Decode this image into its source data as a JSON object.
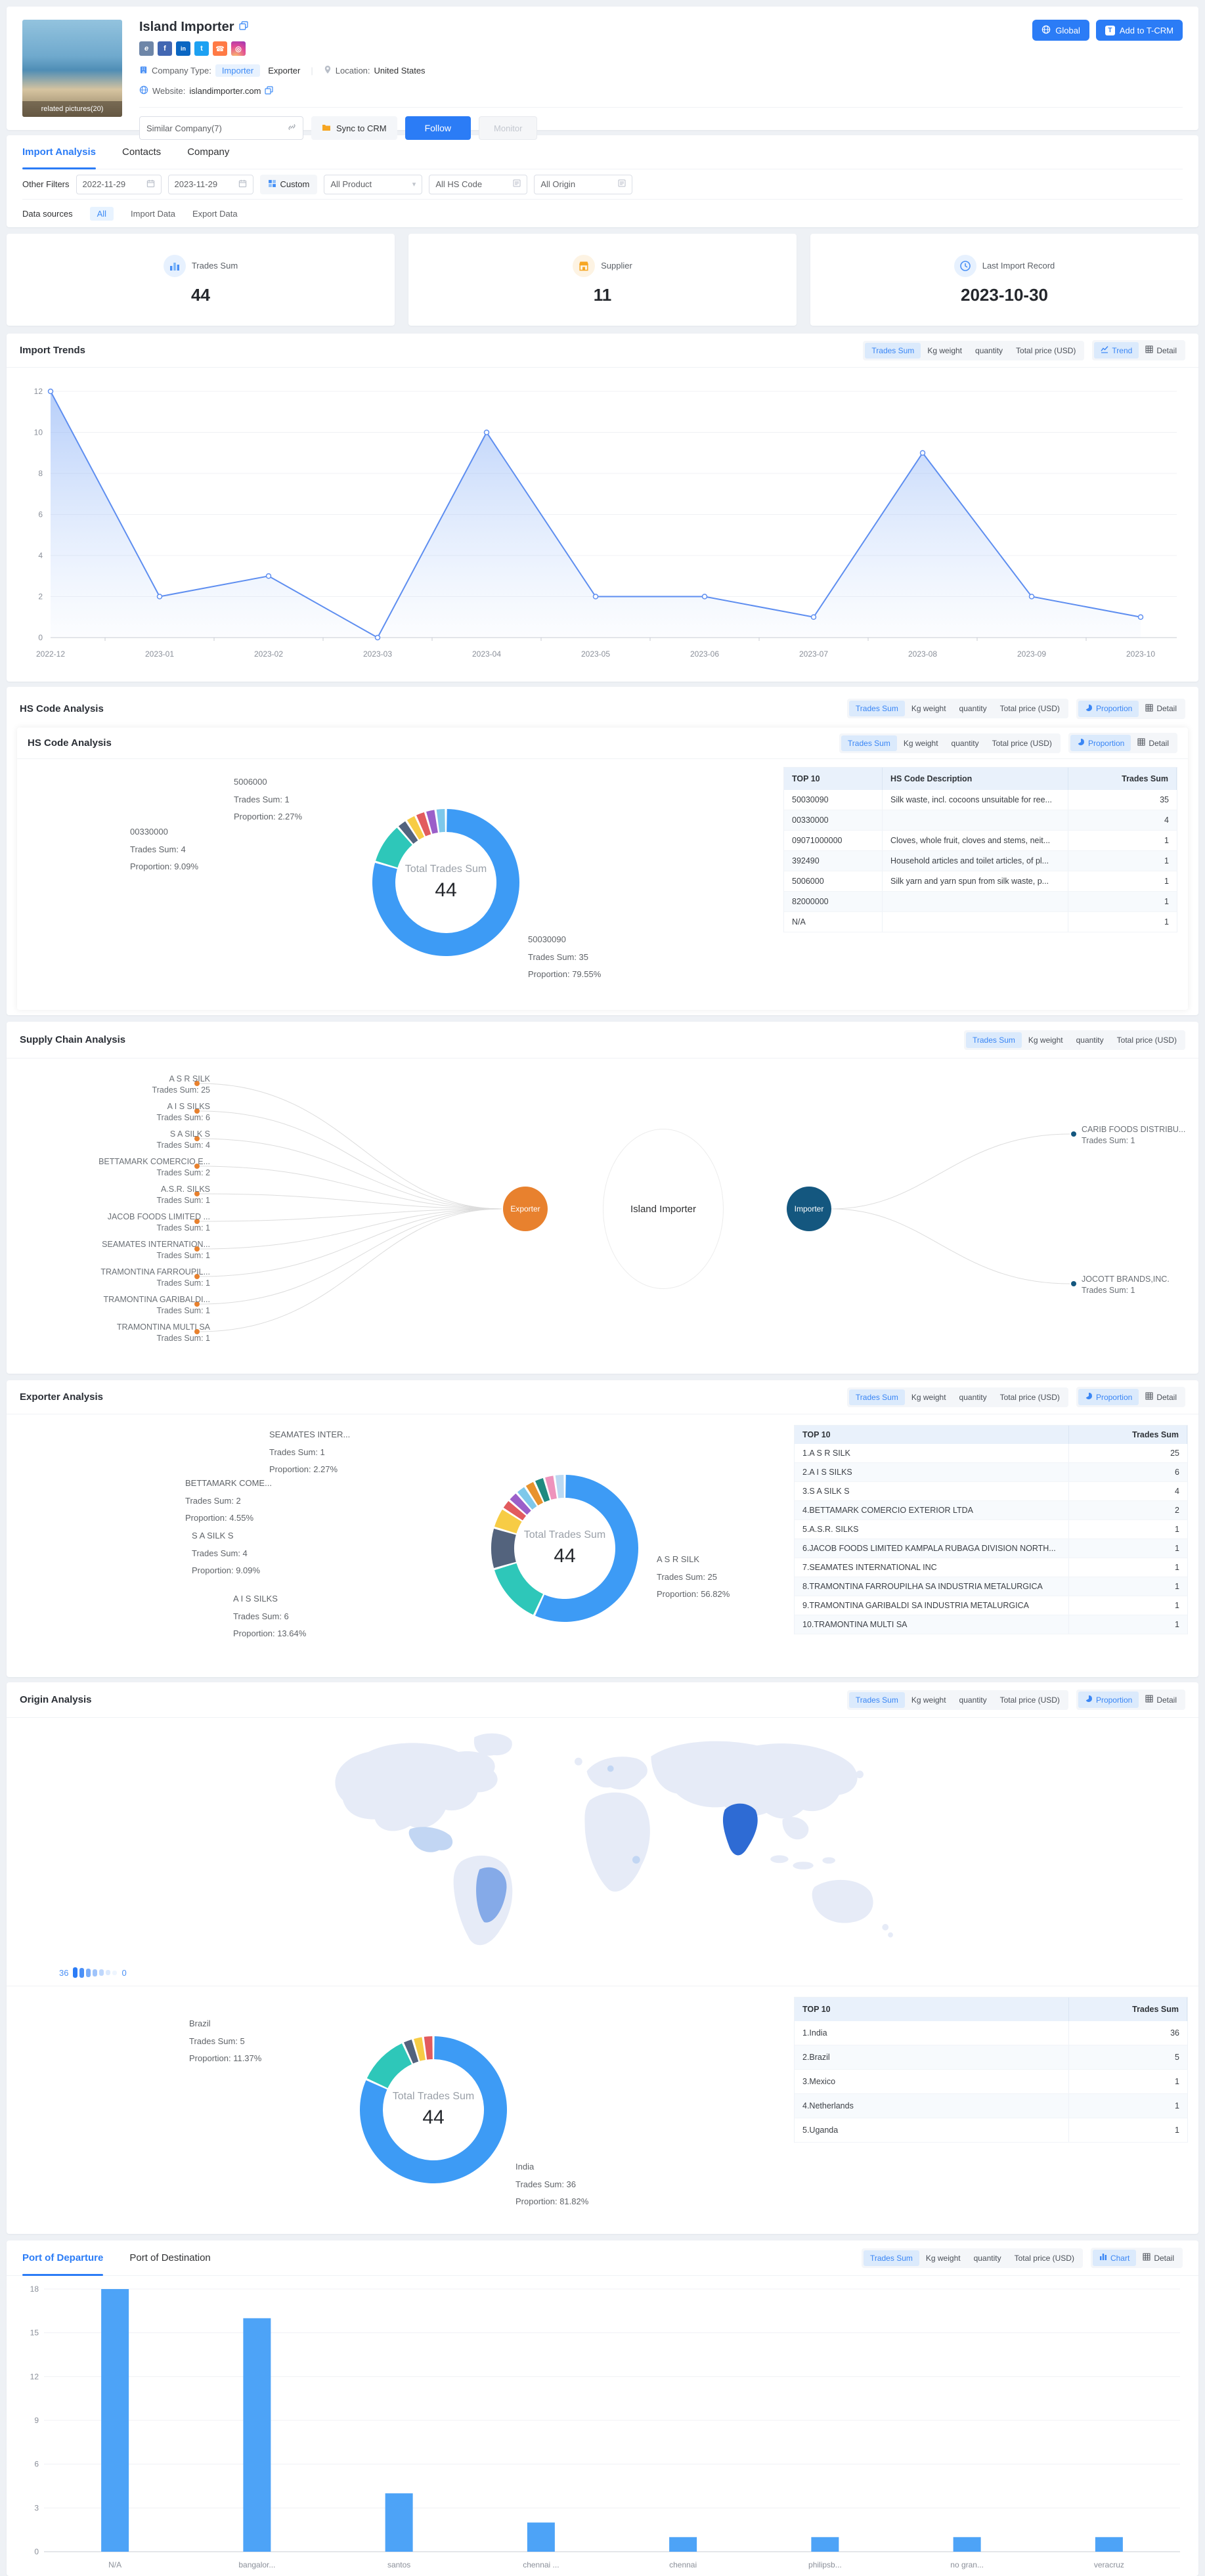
{
  "colors": {
    "primary": "#2b7cf6",
    "chart_blue": "#3D9BF5",
    "teal": "#2EC7B9",
    "slate": "#53637D",
    "yellow": "#F7CC45",
    "red": "#E25B5E",
    "purple": "#9B5FC9",
    "sky": "#7EC8EA",
    "orange": "#E8922D",
    "dark_teal": "#1F8A80",
    "pink": "#EE93BC",
    "pale_blue": "#BBD9F2",
    "exporter_node": "#E8812E",
    "importer_node": "#14577F",
    "line_blue": "#5E8EF0",
    "bar_blue": "#4DA3F7",
    "map_land": "#E6EBF7",
    "map_india": "#2E6BD4",
    "map_brazil": "#85AAE8",
    "map_light": "#C2D6F3"
  },
  "header": {
    "company_name": "Island Importer",
    "photo_caption": "related pictures(20)",
    "global_btn": "Global",
    "add_to_tcrm": "Add to T-CRM",
    "company_type_label": "Company Type:",
    "type_importer": "Importer",
    "type_exporter": "Exporter",
    "location_label": "Location:",
    "location_value": "United States",
    "website_label": "Website:",
    "website_value": "islandimporter.com",
    "similar_company": "Similar Company(7)",
    "sync_to_crm": "Sync to CRM",
    "follow_btn": "Follow",
    "monitor_btn": "Monitor"
  },
  "tabs": {
    "items": [
      "Import Analysis",
      "Contacts",
      "Company"
    ],
    "active": "Import Analysis"
  },
  "filters": {
    "other_filters_label": "Other Filters",
    "date_from": "2022-11-29",
    "date_to": "2023-11-29",
    "custom_btn": "Custom",
    "product_filter": "All Product",
    "hs_code_filter": "All HS Code",
    "origin_filter": "All Origin",
    "data_sources_label": "Data sources",
    "source_all": "All",
    "source_import": "Import Data",
    "source_export": "Export Data"
  },
  "stats": [
    {
      "label": "Trades Sum",
      "value": "44"
    },
    {
      "label": "Supplier",
      "value": "11"
    },
    {
      "label": "Last Import Record",
      "value": "2023-10-30"
    }
  ],
  "metrics": {
    "labels": [
      "Trades Sum",
      "Kg weight",
      "quantity",
      "Total price (USD)"
    ],
    "active": "Trades Sum"
  },
  "views": {
    "trend": "Trend",
    "proportion": "Proportion",
    "chart": "Chart",
    "detail": "Detail"
  },
  "sections": {
    "import_trends": {
      "title": "Import Trends"
    },
    "hs_code": {
      "outer_title": "HS Code Analysis",
      "inner_title": "HS Code Analysis"
    },
    "supply_chain": {
      "title": "Supply Chain Analysis"
    },
    "exporter": {
      "title": "Exporter Analysis"
    },
    "origin": {
      "title": "Origin Analysis",
      "legend_max": "36",
      "legend_min": "0"
    },
    "ports": {
      "tab_departure": "Port of Departure",
      "tab_destination": "Port of Destination",
      "active_tab": "Port of Departure"
    }
  },
  "tables": {
    "hs": {
      "columns": [
        "TOP 10",
        "HS Code Description",
        "Trades Sum"
      ],
      "rows": [
        [
          "50030090",
          "Silk waste, incl. cocoons unsuitable for ree...",
          "35"
        ],
        [
          "00330000",
          "",
          "4"
        ],
        [
          "09071000000",
          "Cloves, whole fruit, cloves and stems, neit...",
          "1"
        ],
        [
          "392490",
          "Household articles and toilet articles, of pl...",
          "1"
        ],
        [
          "5006000",
          "Silk yarn and yarn spun from silk waste, p...",
          "1"
        ],
        [
          "82000000",
          "",
          "1"
        ],
        [
          "N/A",
          "",
          "1"
        ]
      ]
    },
    "exporter": {
      "columns": [
        "TOP 10",
        "Trades Sum"
      ],
      "rows": [
        [
          "1.A S R SILK",
          "25"
        ],
        [
          "2.A I S SILKS",
          "6"
        ],
        [
          "3.S A SILK S",
          "4"
        ],
        [
          "4.BETTAMARK COMERCIO EXTERIOR LTDA",
          "2"
        ],
        [
          "5.A.S.R. SILKS",
          "1"
        ],
        [
          "6.JACOB FOODS LIMITED KAMPALA RUBAGA DIVISION NORTH...",
          "1"
        ],
        [
          "7.SEAMATES INTERNATIONAL INC",
          "1"
        ],
        [
          "8.TRAMONTINA FARROUPILHA SA INDUSTRIA METALURGICA",
          "1"
        ],
        [
          "9.TRAMONTINA GARIBALDI SA INDUSTRIA METALURGICA",
          "1"
        ],
        [
          "10.TRAMONTINA MULTI SA",
          "1"
        ]
      ]
    },
    "origin": {
      "columns": [
        "TOP 10",
        "Trades Sum"
      ],
      "rows": [
        [
          "1.India",
          "36"
        ],
        [
          "2.Brazil",
          "5"
        ],
        [
          "3.Mexico",
          "1"
        ],
        [
          "4.Netherlands",
          "1"
        ],
        [
          "5.Uganda",
          "1"
        ]
      ]
    }
  },
  "chart_data": {
    "import_trends": {
      "type": "area",
      "x": [
        "2022-12",
        "2023-01",
        "2023-02",
        "2023-03",
        "2023-04",
        "2023-05",
        "2023-06",
        "2023-07",
        "2023-08",
        "2023-09",
        "2023-10"
      ],
      "values": [
        12,
        2,
        3,
        0,
        10,
        2,
        2,
        1,
        9,
        2,
        1
      ],
      "y_ticks": [
        0,
        2,
        4,
        6,
        8,
        10,
        12
      ],
      "ylim": [
        0,
        12
      ]
    },
    "hs_donut": {
      "type": "donut",
      "center_label": "Total Trades Sum",
      "center_value": "44",
      "values": [
        35,
        4,
        1,
        1,
        1,
        1,
        1
      ],
      "colors": [
        "chart_blue",
        "teal",
        "slate",
        "yellow",
        "red",
        "purple",
        "sky"
      ],
      "callouts": [
        {
          "name": "5006000",
          "trades": "Trades Sum: 1",
          "proportion": "Proportion: 2.27%"
        },
        {
          "name": "00330000",
          "trades": "Trades Sum: 4",
          "proportion": "Proportion: 9.09%"
        },
        {
          "name": "50030090",
          "trades": "Trades Sum: 35",
          "proportion": "Proportion: 79.55%"
        }
      ]
    },
    "exporter_donut": {
      "type": "donut",
      "center_label": "Total Trades Sum",
      "center_value": "44",
      "values": [
        25,
        6,
        4,
        2,
        1,
        1,
        1,
        1,
        1,
        1,
        1
      ],
      "colors": [
        "chart_blue",
        "teal",
        "slate",
        "yellow",
        "red",
        "purple",
        "sky",
        "orange",
        "dark_teal",
        "pink",
        "pale_blue"
      ],
      "callouts": [
        {
          "name": "SEAMATES INTER...",
          "trades": "Trades Sum: 1",
          "proportion": "Proportion: 2.27%"
        },
        {
          "name": "BETTAMARK COME...",
          "trades": "Trades Sum: 2",
          "proportion": "Proportion: 4.55%"
        },
        {
          "name": "S A SILK S",
          "trades": "Trades Sum: 4",
          "proportion": "Proportion: 9.09%"
        },
        {
          "name": "A I S SILKS",
          "trades": "Trades Sum: 6",
          "proportion": "Proportion: 13.64%"
        },
        {
          "name": "A S R SILK",
          "trades": "Trades Sum: 25",
          "proportion": "Proportion: 56.82%"
        }
      ]
    },
    "origin_donut": {
      "type": "donut",
      "center_label": "Total Trades Sum",
      "center_value": "44",
      "values": [
        36,
        5,
        1,
        1,
        1
      ],
      "colors": [
        "chart_blue",
        "teal",
        "slate",
        "yellow",
        "red"
      ],
      "callouts": [
        {
          "name": "Brazil",
          "trades": "Trades Sum: 5",
          "proportion": "Proportion: 11.37%"
        },
        {
          "name": "India",
          "trades": "Trades Sum: 36",
          "proportion": "Proportion: 81.82%"
        }
      ]
    },
    "ports_bar": {
      "type": "bar",
      "categories": [
        "N/A",
        "bangalor...",
        "santos",
        "chennai ...",
        "chennai",
        "philipsb...",
        "no gran...",
        "veracruz"
      ],
      "values": [
        18,
        16,
        4,
        2,
        1,
        1,
        1,
        1
      ],
      "y_ticks": [
        0,
        3,
        6,
        9,
        12,
        15,
        18
      ],
      "ylim": [
        0,
        18
      ]
    },
    "supply_chain": {
      "center": "Island Importer",
      "left_role": "Exporter",
      "right_role": "Importer",
      "left": [
        {
          "name": "A S R SILK",
          "value": "Trades Sum: 25"
        },
        {
          "name": "A I S SILKS",
          "value": "Trades Sum: 6"
        },
        {
          "name": "S A SILK S",
          "value": "Trades Sum: 4"
        },
        {
          "name": "BETTAMARK COMERCIO E...",
          "value": "Trades Sum: 2"
        },
        {
          "name": "A.S.R. SILKS",
          "value": "Trades Sum: 1"
        },
        {
          "name": "JACOB FOODS LIMITED ...",
          "value": "Trades Sum: 1"
        },
        {
          "name": "SEAMATES INTERNATION...",
          "value": "Trades Sum: 1"
        },
        {
          "name": "TRAMONTINA FARROUPIL...",
          "value": "Trades Sum: 1"
        },
        {
          "name": "TRAMONTINA GARIBALDI...",
          "value": "Trades Sum: 1"
        },
        {
          "name": "TRAMONTINA MULTI SA",
          "value": "Trades Sum: 1"
        }
      ],
      "right": [
        {
          "name": "CARIB FOODS DISTRIBU...",
          "value": "Trades Sum: 1"
        },
        {
          "name": "JOCOTT BRANDS,INC.",
          "value": "Trades Sum: 1"
        }
      ]
    }
  }
}
